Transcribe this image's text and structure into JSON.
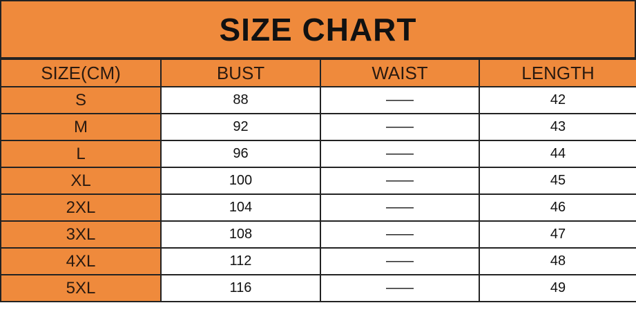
{
  "title": "SIZE CHART",
  "table": {
    "header": [
      "SIZE(CM)",
      "BUST",
      "WAIST",
      "LENGTH"
    ],
    "rows": [
      [
        "S",
        "88",
        "——",
        "42"
      ],
      [
        "M",
        "92",
        "——",
        "43"
      ],
      [
        "L",
        "96",
        "——",
        "44"
      ],
      [
        "XL",
        "100",
        "——",
        "45"
      ],
      [
        "2XL",
        "104",
        "——",
        "46"
      ],
      [
        "3XL",
        "108",
        "——",
        "47"
      ],
      [
        "4XL",
        "112",
        "——",
        "48"
      ],
      [
        "5XL",
        "116",
        "——",
        "49"
      ]
    ]
  }
}
